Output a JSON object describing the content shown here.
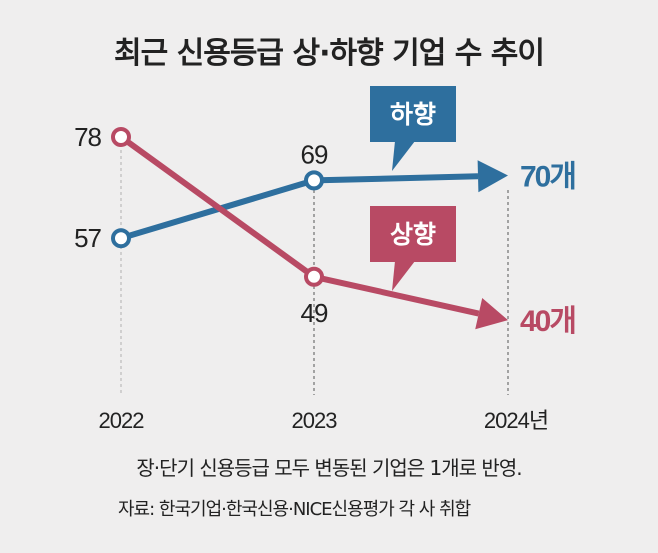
{
  "chart_data": {
    "type": "line",
    "title": "최근 신용등급 상·하향 기업 수 추이",
    "categories": [
      "2022",
      "2023",
      "2024년"
    ],
    "series": [
      {
        "name": "하향",
        "values": [
          57,
          69,
          70
        ],
        "color": "#2e6f9e",
        "end_label": "70개"
      },
      {
        "name": "상향",
        "values": [
          78,
          49,
          40
        ],
        "color": "#b84a64",
        "end_label": "40개"
      }
    ],
    "ylim": [
      40,
      78
    ],
    "grid": false
  },
  "footnote": "장·단기 신용등급 모두 변동된 기업은 1개로 반영.",
  "source": "자료: 한국기업·한국신용·NICE신용평가 각 사 취합"
}
